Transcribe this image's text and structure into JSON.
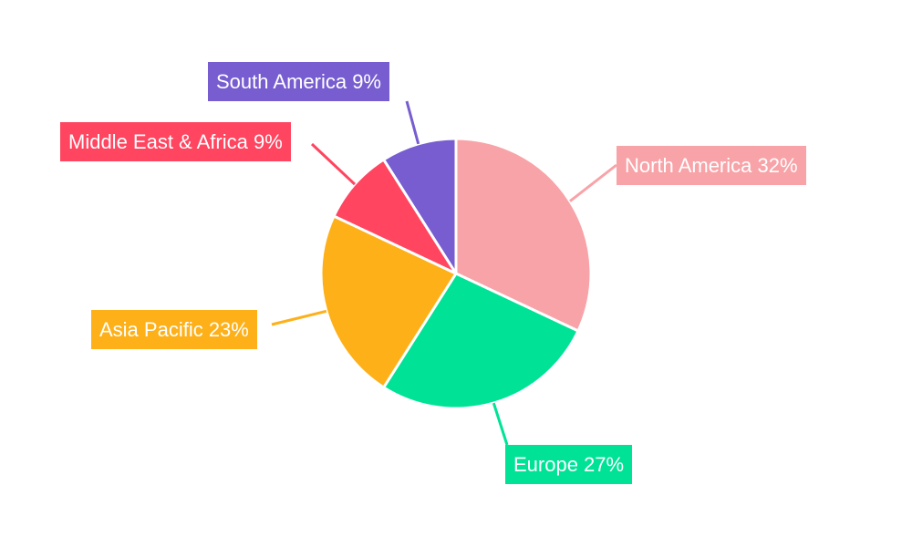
{
  "chart_data": {
    "type": "pie",
    "title": "",
    "categories": [
      "North America",
      "Europe",
      "Asia Pacific",
      "Middle East & Africa",
      "South America"
    ],
    "values": [
      32,
      27,
      23,
      9,
      9
    ],
    "unit": "%",
    "colors": [
      "#f8a3a8",
      "#00e396",
      "#feb019",
      "#ff4560",
      "#775dd0"
    ],
    "labels": [
      {
        "text": "North America 32%",
        "color": "#f8a3a8"
      },
      {
        "text": "Europe 27%",
        "color": "#00e396"
      },
      {
        "text": "Asia Pacific 23%",
        "color": "#feb019"
      },
      {
        "text": "Middle East & Africa 9%",
        "color": "#ff4560"
      },
      {
        "text": "South America 9%",
        "color": "#775dd0"
      }
    ],
    "legend": "none",
    "start_angle": 0,
    "direction": "clockwise"
  }
}
